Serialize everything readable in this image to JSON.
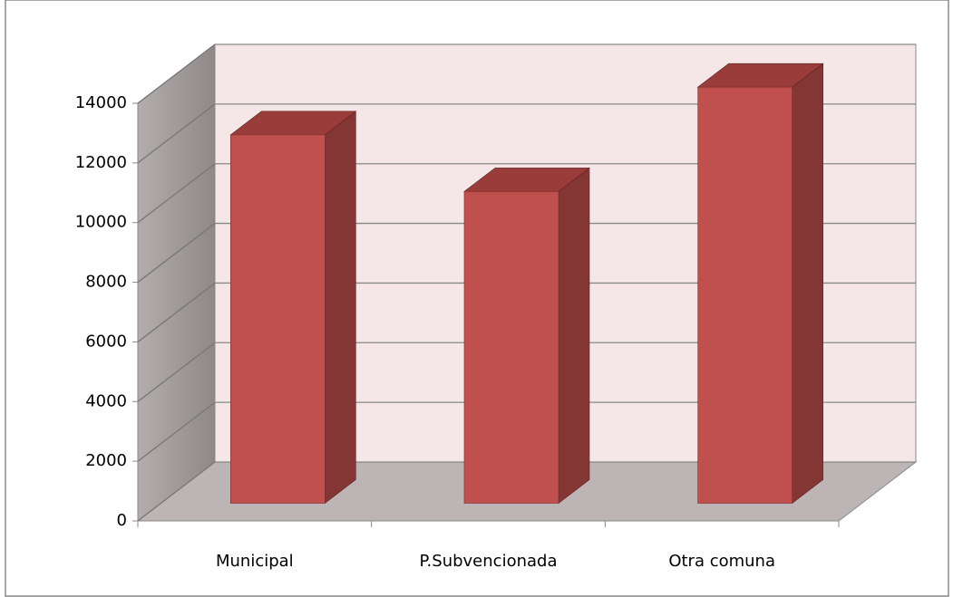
{
  "chart_data": {
    "type": "bar3d",
    "categories": [
      "Municipal",
      "P.Subvencionada",
      "Otra comuna"
    ],
    "values": [
      12350,
      10450,
      13950
    ],
    "color": "#c0504d",
    "ylim": [
      0,
      14000
    ],
    "yticks": [
      0,
      2000,
      4000,
      6000,
      8000,
      10000,
      12000,
      14000
    ],
    "grid": true
  }
}
